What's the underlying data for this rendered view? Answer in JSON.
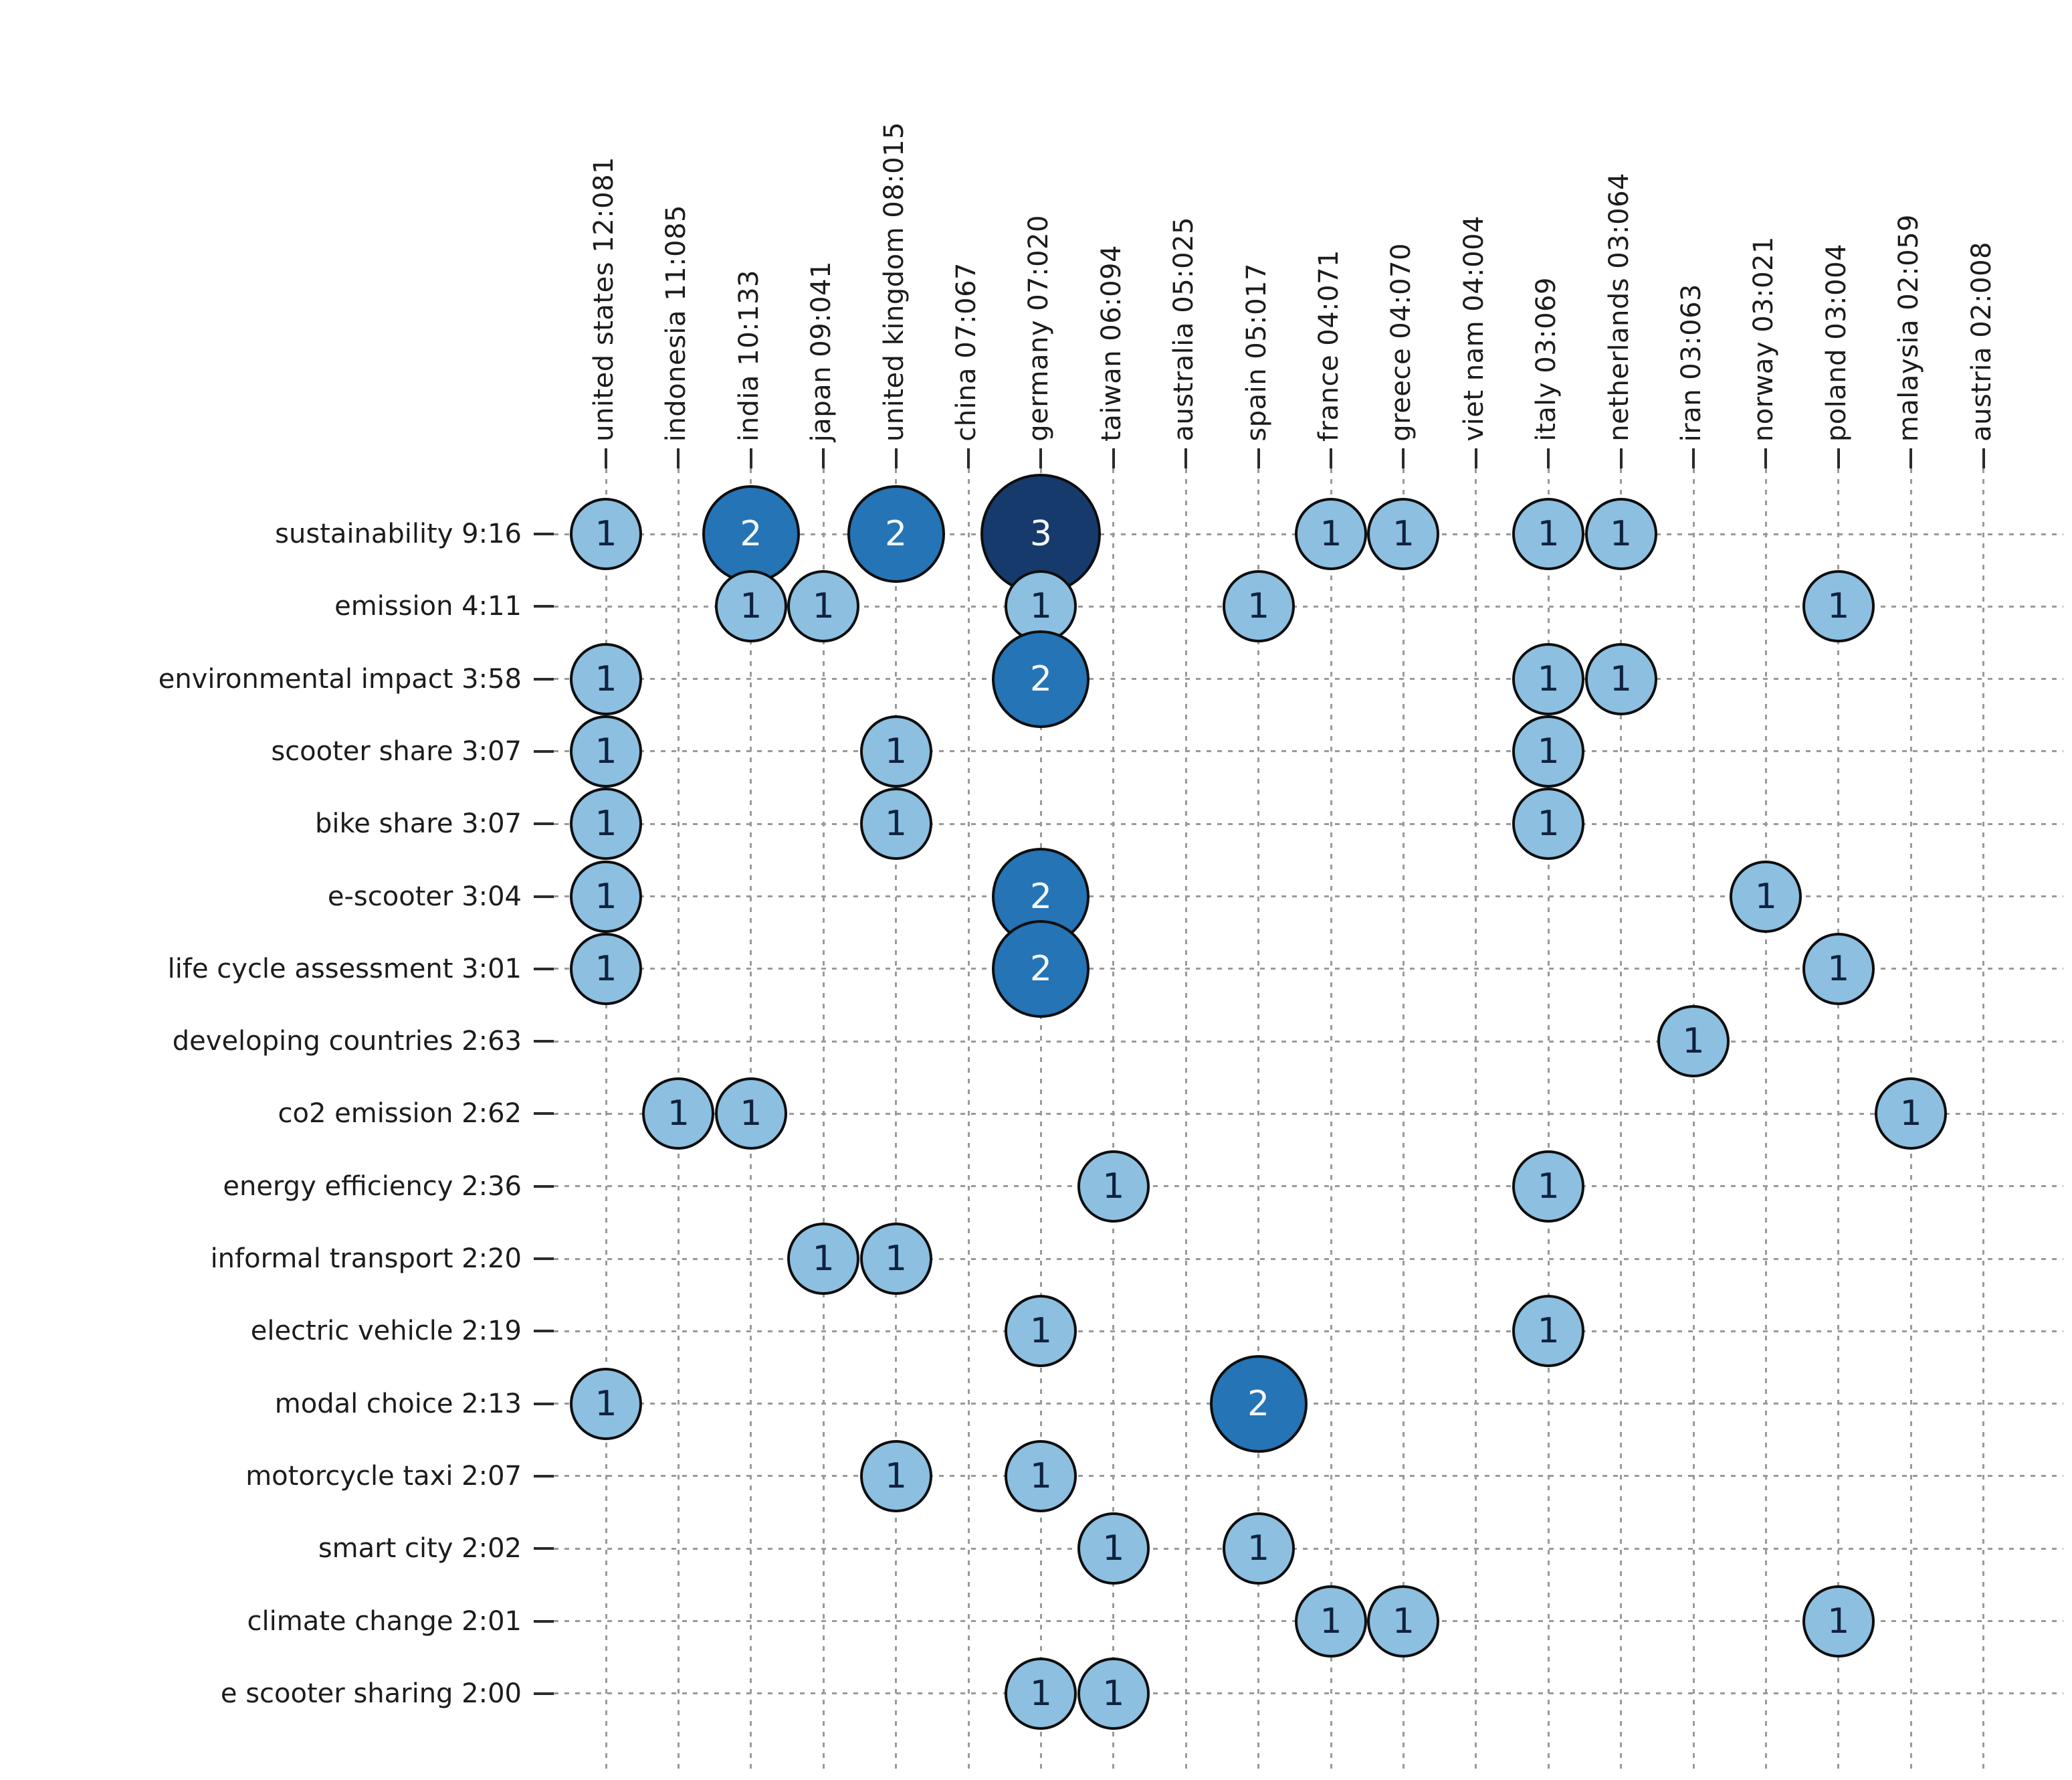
{
  "chart_data": {
    "type": "scatter",
    "subtype": "bubble-matrix",
    "title": "",
    "legend": "none",
    "grid": "dotted",
    "x_categories": [
      "united states 12:081",
      "indonesia 11:085",
      "india 10:133",
      "japan 09:041",
      "united kingdom 08:015",
      "china 07:067",
      "germany 07:020",
      "taiwan 06:094",
      "australia 05:025",
      "spain 05:017",
      "france 04:071",
      "greece 04:070",
      "viet nam 04:004",
      "italy 03:069",
      "netherlands 03:064",
      "iran 03:063",
      "norway 03:021",
      "poland 03:004",
      "malaysia 02:059",
      "austria 02:008"
    ],
    "y_categories": [
      "sustainability 9:16",
      "emission 4:11",
      "environmental impact 3:58",
      "scooter share 3:07",
      "bike share 3:07",
      "e-scooter 3:04",
      "life cycle assessment 3:01",
      "developing countries 2:63",
      "co2 emission 2:62",
      "energy efficiency 2:36",
      "informal transport 2:20",
      "electric vehicle 2:19",
      "modal choice 2:13",
      "motorcycle taxi 2:07",
      "smart city 2:02",
      "climate change 2:01",
      "e scooter sharing 2:00"
    ],
    "points": [
      {
        "x": "united states 12:081",
        "y": "sustainability 9:16",
        "value": 1
      },
      {
        "x": "india 10:133",
        "y": "sustainability 9:16",
        "value": 2
      },
      {
        "x": "united kingdom 08:015",
        "y": "sustainability 9:16",
        "value": 2
      },
      {
        "x": "germany 07:020",
        "y": "sustainability 9:16",
        "value": 3
      },
      {
        "x": "france 04:071",
        "y": "sustainability 9:16",
        "value": 1
      },
      {
        "x": "greece 04:070",
        "y": "sustainability 9:16",
        "value": 1
      },
      {
        "x": "italy 03:069",
        "y": "sustainability 9:16",
        "value": 1
      },
      {
        "x": "netherlands 03:064",
        "y": "sustainability 9:16",
        "value": 1
      },
      {
        "x": "india 10:133",
        "y": "emission 4:11",
        "value": 1
      },
      {
        "x": "japan 09:041",
        "y": "emission 4:11",
        "value": 1
      },
      {
        "x": "germany 07:020",
        "y": "emission 4:11",
        "value": 1
      },
      {
        "x": "spain 05:017",
        "y": "emission 4:11",
        "value": 1
      },
      {
        "x": "poland 03:004",
        "y": "emission 4:11",
        "value": 1
      },
      {
        "x": "united states 12:081",
        "y": "environmental impact 3:58",
        "value": 1
      },
      {
        "x": "germany 07:020",
        "y": "environmental impact 3:58",
        "value": 2
      },
      {
        "x": "italy 03:069",
        "y": "environmental impact 3:58",
        "value": 1
      },
      {
        "x": "netherlands 03:064",
        "y": "environmental impact 3:58",
        "value": 1
      },
      {
        "x": "united states 12:081",
        "y": "scooter share 3:07",
        "value": 1
      },
      {
        "x": "united kingdom 08:015",
        "y": "scooter share 3:07",
        "value": 1
      },
      {
        "x": "italy 03:069",
        "y": "scooter share 3:07",
        "value": 1
      },
      {
        "x": "united states 12:081",
        "y": "bike share 3:07",
        "value": 1
      },
      {
        "x": "united kingdom 08:015",
        "y": "bike share 3:07",
        "value": 1
      },
      {
        "x": "italy 03:069",
        "y": "bike share 3:07",
        "value": 1
      },
      {
        "x": "united states 12:081",
        "y": "e-scooter 3:04",
        "value": 1
      },
      {
        "x": "germany 07:020",
        "y": "e-scooter 3:04",
        "value": 2
      },
      {
        "x": "norway 03:021",
        "y": "e-scooter 3:04",
        "value": 1
      },
      {
        "x": "united states 12:081",
        "y": "life cycle assessment 3:01",
        "value": 1
      },
      {
        "x": "germany 07:020",
        "y": "life cycle assessment 3:01",
        "value": 2
      },
      {
        "x": "poland 03:004",
        "y": "life cycle assessment 3:01",
        "value": 1
      },
      {
        "x": "iran 03:063",
        "y": "developing countries 2:63",
        "value": 1
      },
      {
        "x": "indonesia 11:085",
        "y": "co2 emission 2:62",
        "value": 1
      },
      {
        "x": "india 10:133",
        "y": "co2 emission 2:62",
        "value": 1
      },
      {
        "x": "malaysia 02:059",
        "y": "co2 emission 2:62",
        "value": 1
      },
      {
        "x": "taiwan 06:094",
        "y": "energy efficiency 2:36",
        "value": 1
      },
      {
        "x": "italy 03:069",
        "y": "energy efficiency 2:36",
        "value": 1
      },
      {
        "x": "japan 09:041",
        "y": "informal transport 2:20",
        "value": 1
      },
      {
        "x": "united kingdom 08:015",
        "y": "informal transport 2:20",
        "value": 1
      },
      {
        "x": "germany 07:020",
        "y": "electric vehicle 2:19",
        "value": 1
      },
      {
        "x": "italy 03:069",
        "y": "electric vehicle 2:19",
        "value": 1
      },
      {
        "x": "united states 12:081",
        "y": "modal choice 2:13",
        "value": 1
      },
      {
        "x": "spain 05:017",
        "y": "modal choice 2:13",
        "value": 2
      },
      {
        "x": "united kingdom 08:015",
        "y": "motorcycle taxi 2:07",
        "value": 1
      },
      {
        "x": "germany 07:020",
        "y": "motorcycle taxi 2:07",
        "value": 1
      },
      {
        "x": "taiwan 06:094",
        "y": "smart city 2:02",
        "value": 1
      },
      {
        "x": "spain 05:017",
        "y": "smart city 2:02",
        "value": 1
      },
      {
        "x": "france 04:071",
        "y": "climate change 2:01",
        "value": 1
      },
      {
        "x": "greece 04:070",
        "y": "climate change 2:01",
        "value": 1
      },
      {
        "x": "poland 03:004",
        "y": "climate change 2:01",
        "value": 1
      },
      {
        "x": "germany 07:020",
        "y": "e scooter sharing 2:00",
        "value": 1
      },
      {
        "x": "taiwan 06:094",
        "y": "e scooter sharing 2:00",
        "value": 1
      }
    ],
    "value_colors": {
      "1": "#8CBFE0",
      "2": "#2474B6",
      "3": "#173A6D"
    },
    "value_text_colors": {
      "1": "#10223E",
      "2": "#F4F7FB",
      "3": "#F4F7FB"
    }
  }
}
